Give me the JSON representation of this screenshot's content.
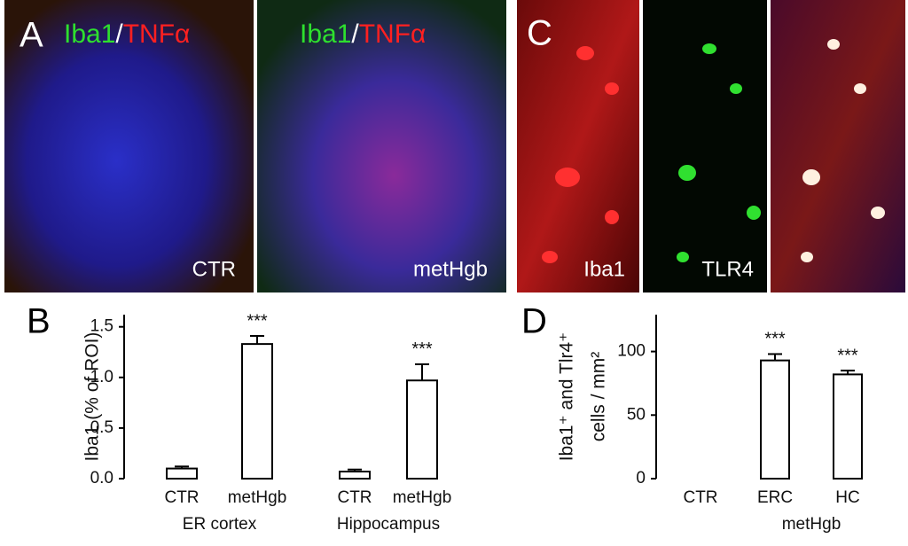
{
  "panels": {
    "A": {
      "letter": "A",
      "images": [
        {
          "stain": [
            "Iba1",
            "/",
            "TNFα"
          ],
          "label": "CTR"
        },
        {
          "stain": [
            "Iba1",
            "/",
            "TNFα"
          ],
          "label": "metHgb"
        }
      ]
    },
    "C": {
      "letter": "C",
      "labels": [
        "Iba1",
        "TLR4"
      ]
    }
  },
  "chart_data": [
    {
      "type": "bar",
      "panel_label": "B",
      "ylabel": [
        "Iba1 (% of ROI)"
      ],
      "categories": [
        "CTR",
        "metHgb",
        "CTR",
        "metHgb"
      ],
      "groups": [
        {
          "label": "ER cortex",
          "span": [
            0,
            1
          ]
        },
        {
          "label": "Hippocampus",
          "span": [
            2,
            3
          ]
        }
      ],
      "values": [
        0.1,
        1.33,
        0.07,
        0.97
      ],
      "errors": [
        0.02,
        0.08,
        0.02,
        0.16
      ],
      "annotations": [
        null,
        "***",
        null,
        "***"
      ],
      "ylim": [
        0,
        1.62
      ],
      "yticks": [
        {
          "value": 0,
          "label": "0.0"
        },
        0.5,
        {
          "value": 1,
          "label": "1.0"
        },
        1.5
      ],
      "color": "#ffffff"
    },
    {
      "type": "bar",
      "panel_label": "D",
      "ylabel": [
        "Iba1⁺ and Tlr4⁺",
        "cells / mm²"
      ],
      "categories": [
        "CTR",
        "ERC",
        "HC"
      ],
      "groups": [
        {
          "label": "metHgb",
          "span": [
            1,
            2
          ]
        }
      ],
      "values": [
        0,
        93,
        82
      ],
      "errors": [
        0,
        5,
        3
      ],
      "annotations": [
        null,
        "***",
        "***"
      ],
      "ylim": [
        0,
        129
      ],
      "yticks": [
        0,
        50,
        100
      ],
      "color": "#ffffff"
    }
  ]
}
